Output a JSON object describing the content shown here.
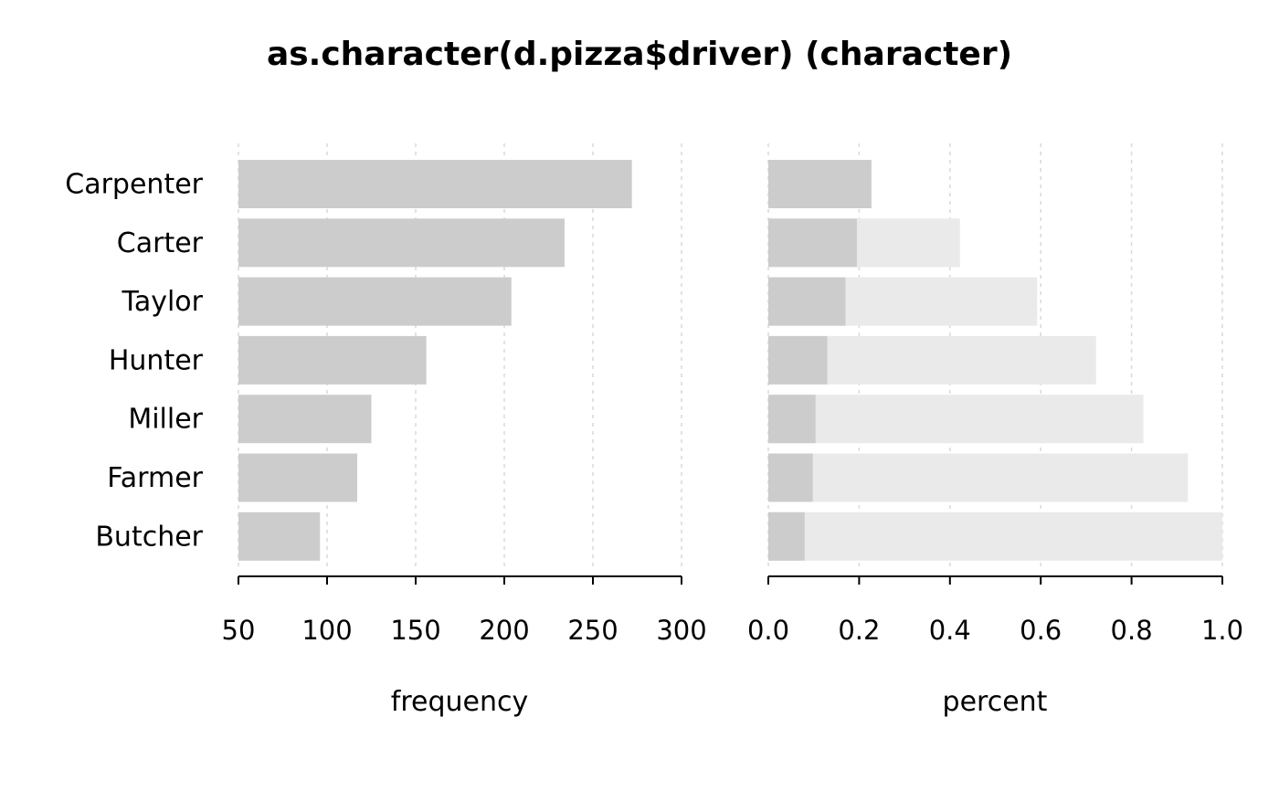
{
  "chart_data": {
    "title": "as.character(d.pizza$driver) (character)",
    "categories": [
      "Carpenter",
      "Carter",
      "Taylor",
      "Hunter",
      "Miller",
      "Farmer",
      "Butcher"
    ],
    "panels": [
      {
        "type": "bar",
        "orientation": "horizontal",
        "xlabel": "frequency",
        "xlim": [
          50,
          300
        ],
        "ticks": [
          "50",
          "100",
          "150",
          "200",
          "250",
          "300"
        ],
        "tick_values": [
          50,
          100,
          150,
          200,
          250,
          300
        ],
        "series": [
          {
            "values": [
              272,
              234,
              204,
              156,
              125,
              117,
              96
            ]
          }
        ],
        "grid": true
      },
      {
        "type": "bar",
        "orientation": "horizontal",
        "xlabel": "percent",
        "xlim": [
          0,
          1
        ],
        "ticks": [
          "0.0",
          "0.2",
          "0.4",
          "0.6",
          "0.8",
          "1.0"
        ],
        "tick_values": [
          0,
          0.2,
          0.4,
          0.6,
          0.8,
          1.0
        ],
        "series": [
          {
            "values": [
              0.227,
              0.195,
              0.17,
              0.13,
              0.104,
              0.098,
              0.08
            ]
          },
          {
            "values": [
              0.227,
              0.422,
              0.592,
              0.722,
              0.826,
              0.924,
              1.0
            ]
          }
        ],
        "grid": true
      }
    ],
    "colors": {
      "bar": "#cccccc",
      "cumulative_bar": "#eaeaea",
      "grid": "#d9d9d9",
      "axis": "#000000"
    }
  }
}
